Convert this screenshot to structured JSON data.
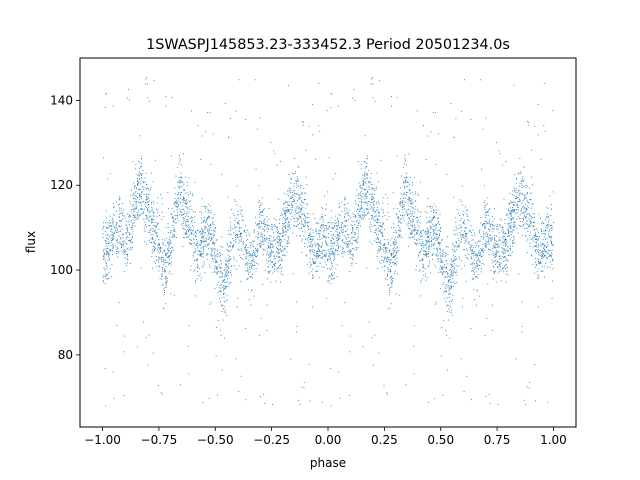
{
  "chart_data": {
    "type": "scatter",
    "title": "1SWASPJ145853.23-333452.3 Period 20501234.0s",
    "xlabel": "phase",
    "ylabel": "flux",
    "xlim": [
      -1.1,
      1.1
    ],
    "ylim": [
      63,
      150
    ],
    "xticks": [
      -1.0,
      -0.75,
      -0.5,
      -0.25,
      0.0,
      0.25,
      0.5,
      0.75,
      1.0
    ],
    "xtick_labels": [
      "−1.00",
      "−0.75",
      "−0.50",
      "−0.25",
      "0.00",
      "0.25",
      "0.50",
      "0.75",
      "1.00"
    ],
    "yticks": [
      80,
      100,
      120,
      140
    ],
    "ytick_labels": [
      "80",
      "100",
      "120",
      "140"
    ],
    "grid": false,
    "marker_color": "#1f77b4",
    "series": [
      {
        "points_description": "folded light curve, same pattern repeated for phase -1..0 and 0..1",
        "profile": {
          "x": [
            0.0,
            0.02,
            0.04,
            0.06,
            0.08,
            0.1,
            0.12,
            0.14,
            0.16,
            0.18,
            0.2,
            0.22,
            0.24,
            0.26,
            0.28,
            0.3,
            0.32,
            0.34,
            0.36,
            0.38,
            0.4,
            0.42,
            0.44,
            0.46,
            0.48,
            0.5,
            0.52,
            0.54,
            0.56,
            0.58,
            0.6,
            0.62,
            0.64,
            0.66,
            0.68,
            0.7,
            0.72,
            0.74,
            0.76,
            0.78,
            0.8,
            0.82,
            0.84,
            0.86,
            0.88,
            0.9,
            0.92,
            0.94,
            0.96,
            0.98,
            1.0
          ],
          "y": [
            106,
            104,
            108,
            110,
            112,
            106,
            108,
            115,
            120,
            118,
            114,
            110,
            108,
            104,
            100,
            106,
            112,
            118,
            116,
            112,
            108,
            104,
            106,
            110,
            108,
            104,
            100,
            95,
            102,
            108,
            110,
            108,
            104,
            102,
            106,
            110,
            108,
            106,
            104,
            106,
            108,
            112,
            116,
            118,
            114,
            110,
            106,
            104,
            106,
            108,
            106
          ]
        },
        "spread": 9
      }
    ]
  }
}
